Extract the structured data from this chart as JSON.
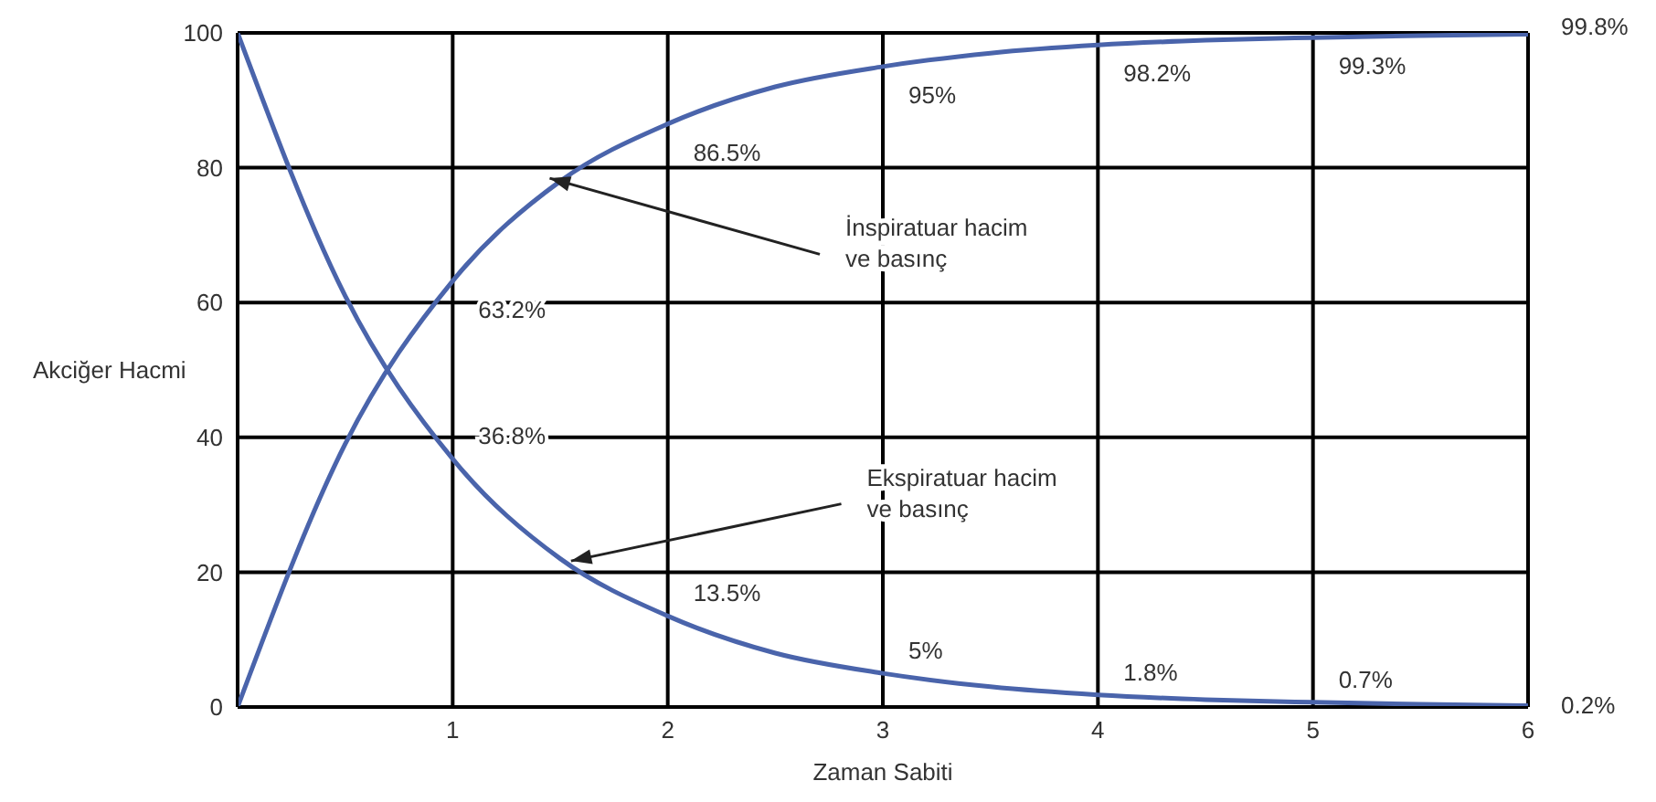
{
  "chart_data": {
    "type": "line",
    "xlabel": "Zaman Sabiti",
    "ylabel": "Akciğer Hacmi",
    "x": [
      0,
      0.5,
      1,
      1.5,
      2,
      2.5,
      3,
      3.5,
      4,
      4.5,
      5,
      5.5,
      6
    ],
    "series": [
      {
        "color": "#4a64ab",
        "values": [
          0,
          39,
          63.2,
          78,
          86.5,
          92,
          95,
          97,
          98.2,
          98.9,
          99.3,
          99.6,
          99.8
        ],
        "value_labels": [
          null,
          null,
          "63.2%",
          null,
          "86.5%",
          null,
          "95%",
          null,
          "98.2%",
          null,
          "99.3%",
          null,
          "99.8%"
        ]
      },
      {
        "color": "#4a64ab",
        "values": [
          100,
          61,
          36.8,
          22,
          13.5,
          8,
          5,
          3,
          1.8,
          1.1,
          0.7,
          0.4,
          0.2
        ],
        "value_labels": [
          null,
          null,
          "36.8%",
          null,
          "13.5%",
          null,
          "5%",
          null,
          "1.8%",
          null,
          "0.7%",
          null,
          "0.2%"
        ]
      }
    ],
    "annotations": [
      {
        "text": "İnspiratuar hacim\nve basınç",
        "x": 1.5,
        "y": 78
      },
      {
        "text": "Ekspiratuar hacim\nve basınç",
        "x": 1.6,
        "y": 22
      }
    ],
    "xlim": [
      0,
      6
    ],
    "xticks": [
      1,
      2,
      3,
      4,
      5,
      6
    ],
    "ylim": [
      0,
      100
    ],
    "yticks": [
      0,
      20,
      40,
      60,
      80,
      100
    ],
    "grid": true,
    "marker": "none",
    "line_style": "solid"
  }
}
